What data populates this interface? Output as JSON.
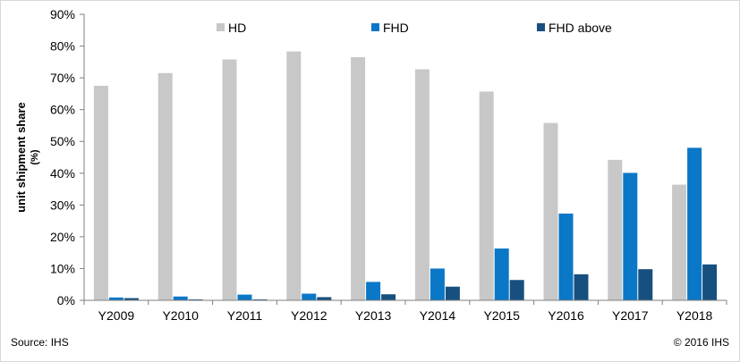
{
  "chart_data": {
    "type": "bar",
    "categories": [
      "Y2009",
      "Y2010",
      "Y2011",
      "Y2012",
      "Y2013",
      "Y2014",
      "Y2015",
      "Y2016",
      "Y2017",
      "Y2018"
    ],
    "series": [
      {
        "name": "HD",
        "color": "#c8c8c8",
        "values": [
          67.5,
          71.5,
          75.8,
          78.3,
          76.5,
          72.7,
          65.7,
          55.8,
          44.2,
          36.4
        ]
      },
      {
        "name": "FHD",
        "color": "#0a77c7",
        "values": [
          0.9,
          1.2,
          1.8,
          2.1,
          5.8,
          10.0,
          16.3,
          27.3,
          40.1,
          48.0
        ]
      },
      {
        "name": "FHD above",
        "color": "#17507e",
        "values": [
          0.7,
          0.3,
          0.3,
          1.0,
          1.9,
          4.3,
          6.4,
          8.2,
          9.8,
          11.3
        ]
      }
    ],
    "ylabel_line1": "unit shipment share",
    "ylabel_line2": "(%)",
    "ylim": [
      0,
      90
    ],
    "yticks": [
      "0%",
      "10%",
      "20%",
      "30%",
      "40%",
      "50%",
      "60%",
      "70%",
      "80%",
      "90%"
    ],
    "ytick_values": [
      0,
      10,
      20,
      30,
      40,
      50,
      60,
      70,
      80,
      90
    ],
    "legend_position": "top",
    "grid": false
  },
  "footer": {
    "source": "Source: IHS",
    "copyright": "© 2016 IHS"
  }
}
